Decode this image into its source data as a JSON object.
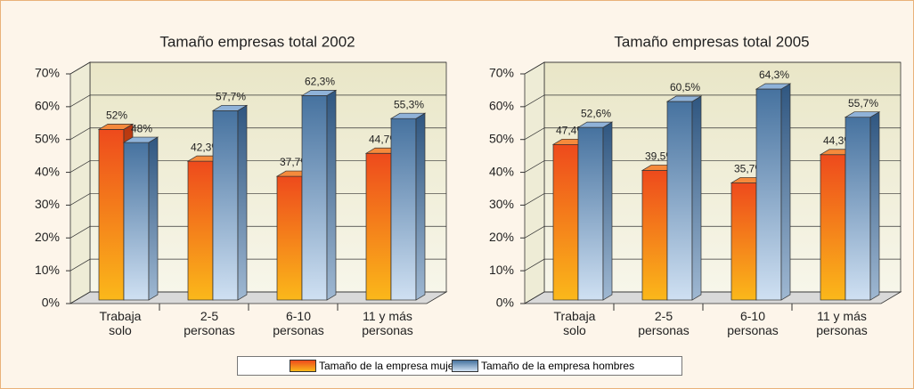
{
  "chart_data": [
    {
      "type": "bar3d",
      "title": "Tamaño empresas total 2002",
      "categories": [
        "Trabaja solo",
        "2-5 personas",
        "6-10 personas",
        "11 y más personas"
      ],
      "series": [
        {
          "name": "Tamaño de la empresa mujeres",
          "color": "#f26522",
          "values": [
            52,
            42.3,
            37.7,
            44.7
          ],
          "value_labels": [
            "52%",
            "42,3%",
            "37,7%",
            "44,7%"
          ]
        },
        {
          "name": "Tamaño de la empresa hombres",
          "color": "#4f7ba8",
          "values": [
            48,
            57.7,
            62.3,
            55.3
          ],
          "value_labels": [
            "48%",
            "57,7%",
            "62,3%",
            "55,3%"
          ]
        }
      ],
      "ylim": [
        0,
        70
      ],
      "yticks": [
        {
          "value": 0,
          "label": "0%"
        },
        {
          "value": 10,
          "label": "10%"
        },
        {
          "value": 20,
          "label": "20%"
        },
        {
          "value": 30,
          "label": "30%"
        },
        {
          "value": 40,
          "label": "40%"
        },
        {
          "value": 50,
          "label": "50%"
        },
        {
          "value": 60,
          "label": "60%"
        },
        {
          "value": 70,
          "label": "70%"
        }
      ],
      "grid": true
    },
    {
      "type": "bar3d",
      "title": "Tamaño empresas total 2005",
      "categories": [
        "Trabaja solo",
        "2-5 personas",
        "6-10 personas",
        "11 y más personas"
      ],
      "series": [
        {
          "color": "#f26522",
          "values": [
            47.4,
            39.5,
            35.7,
            44.3
          ],
          "value_labels": [
            "47,4%",
            "39,5%",
            "35,7%",
            "44,3%"
          ]
        },
        {
          "color": "#4f7ba8",
          "values": [
            52.6,
            60.5,
            64.3,
            55.7
          ],
          "value_labels": [
            "52,6%",
            "60,5%",
            "64,3%",
            "55,7%"
          ]
        }
      ],
      "ylim": [
        0,
        70
      ],
      "yticks": [
        {
          "value": 0,
          "label": "0%"
        },
        {
          "value": 10,
          "label": "10%"
        },
        {
          "value": 20,
          "label": "20%"
        },
        {
          "value": 30,
          "label": "30%"
        },
        {
          "value": 40,
          "label": "40%"
        },
        {
          "value": 50,
          "label": "50%"
        },
        {
          "value": 60,
          "label": "60%"
        },
        {
          "value": 70,
          "label": "70%"
        }
      ],
      "grid": true
    }
  ]
}
